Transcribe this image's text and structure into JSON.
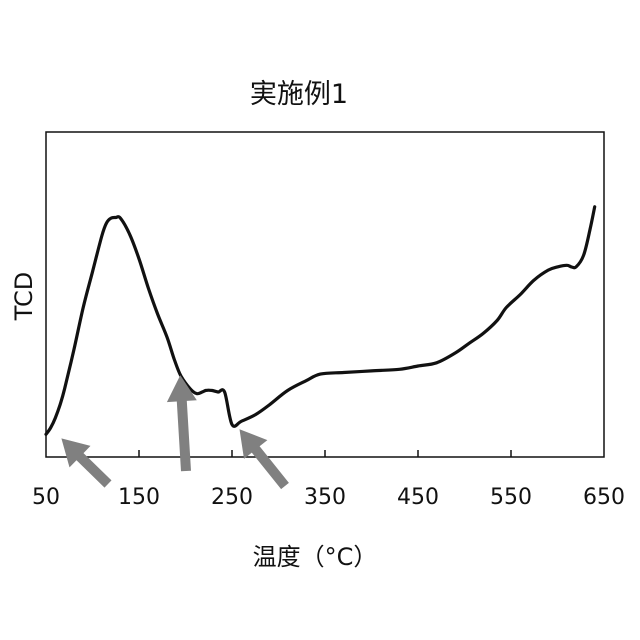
{
  "chart_data": {
    "type": "line",
    "title": "実施例1",
    "xlabel": "温度（°C）",
    "ylabel": "TCD",
    "xlim": [
      50,
      650
    ],
    "ylim": [
      0,
      1
    ],
    "xticks": [
      50,
      150,
      250,
      350,
      450,
      550,
      650
    ],
    "yticks": [],
    "grid": false,
    "legend": "none",
    "series": [
      {
        "color": "#111111",
        "x": [
          50,
          55,
          60,
          65,
          70,
          80,
          90,
          100,
          110,
          115,
          120,
          125,
          130,
          140,
          150,
          160,
          170,
          180,
          188,
          195,
          205,
          212,
          218,
          222,
          228,
          235,
          242,
          250,
          260,
          275,
          290,
          310,
          330,
          345,
          370,
          400,
          430,
          450,
          470,
          490,
          505,
          520,
          535,
          545,
          560,
          575,
          590,
          600,
          610,
          615,
          620,
          628,
          635,
          640
        ],
        "y": [
          0.07,
          0.09,
          0.12,
          0.16,
          0.21,
          0.33,
          0.46,
          0.57,
          0.68,
          0.72,
          0.735,
          0.737,
          0.735,
          0.685,
          0.61,
          0.52,
          0.44,
          0.37,
          0.3,
          0.25,
          0.21,
          0.195,
          0.2,
          0.205,
          0.205,
          0.2,
          0.2,
          0.1,
          0.11,
          0.13,
          0.16,
          0.205,
          0.235,
          0.255,
          0.26,
          0.265,
          0.27,
          0.28,
          0.29,
          0.32,
          0.35,
          0.38,
          0.42,
          0.46,
          0.5,
          0.545,
          0.575,
          0.585,
          0.59,
          0.585,
          0.585,
          0.62,
          0.7,
          0.77
        ]
      }
    ],
    "annotations": [
      {
        "type": "arrow",
        "color": "#808080",
        "target": [
          62,
          0.07
        ]
      },
      {
        "type": "arrow",
        "color": "#808080",
        "target": [
          194,
          0.27
        ]
      },
      {
        "type": "arrow",
        "color": "#808080",
        "target": [
          254,
          0.1
        ]
      }
    ]
  }
}
